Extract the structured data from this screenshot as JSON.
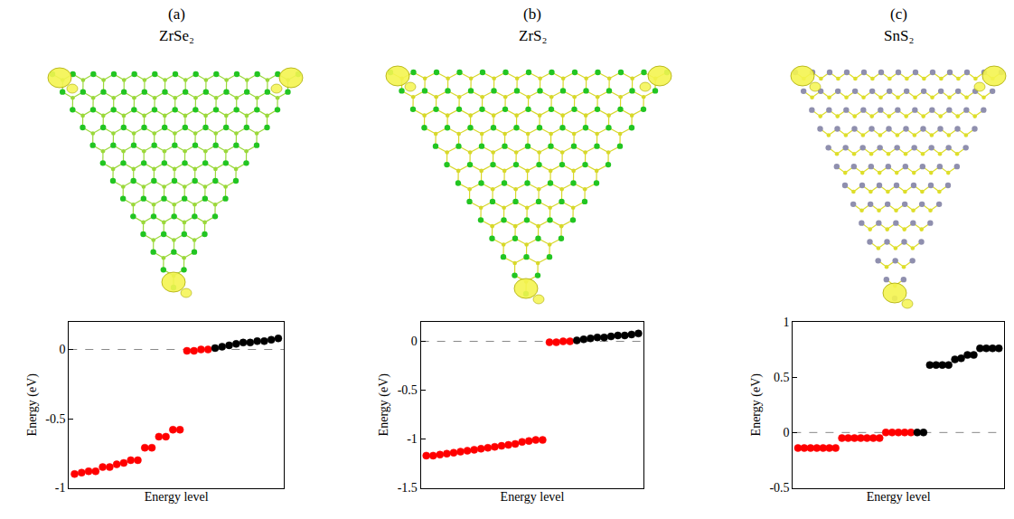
{
  "chart_data": [
    {
      "type": "scatter",
      "title": "(a)",
      "subtitle": "ZrSe₂",
      "x_label": "Energy level",
      "y_label": "Energy (eV)",
      "ylim": [
        -1,
        0.2
      ],
      "yticks": [
        -1,
        -0.5,
        0
      ],
      "tick_labels": "y",
      "marker": "circle",
      "reference_line": 0,
      "series": [
        {
          "color": "#ff0000",
          "values": [
            -0.9,
            -0.89,
            -0.88,
            -0.88,
            -0.85,
            -0.85,
            -0.83,
            -0.82,
            -0.8,
            -0.8,
            -0.71,
            -0.71,
            -0.63,
            -0.63,
            -0.58,
            -0.58,
            -0.01,
            -0.01,
            0,
            0
          ]
        },
        {
          "color": "#000000",
          "values": [
            0.01,
            0.02,
            0.03,
            0.04,
            0.05,
            0.05,
            0.06,
            0.06,
            0.07,
            0.08
          ]
        }
      ]
    },
    {
      "type": "scatter",
      "title": "(b)",
      "subtitle": "ZrS₂",
      "x_label": "Energy level",
      "y_label": "Energy (eV)",
      "ylim": [
        -1.5,
        0.2
      ],
      "yticks": [
        -1.5,
        -1,
        -0.5,
        0
      ],
      "tick_labels": "y",
      "marker": "circle",
      "reference_line": 0,
      "series": [
        {
          "color": "#ff0000",
          "values": [
            -1.17,
            -1.17,
            -1.16,
            -1.15,
            -1.14,
            -1.13,
            -1.12,
            -1.11,
            -1.1,
            -1.09,
            -1.08,
            -1.07,
            -1.06,
            -1.05,
            -1.03,
            -1.02,
            -1.01,
            -1.01,
            -0.01,
            -0.01,
            0,
            0
          ]
        },
        {
          "color": "#000000",
          "values": [
            0.01,
            0.02,
            0.03,
            0.04,
            0.04,
            0.05,
            0.06,
            0.06,
            0.07,
            0.08
          ]
        }
      ]
    },
    {
      "type": "scatter",
      "title": "(c)",
      "subtitle": "SnS₂",
      "x_label": "Energy level",
      "y_label": "Energy (eV)",
      "ylim": [
        -0.5,
        1
      ],
      "yticks": [
        -0.5,
        0,
        0.5,
        1
      ],
      "tick_labels": "y",
      "marker": "circle",
      "reference_line": 0,
      "series": [
        {
          "color": "#ff0000",
          "values": [
            -0.14,
            -0.14,
            -0.14,
            -0.14,
            -0.14,
            -0.14,
            -0.14,
            -0.05,
            -0.05,
            -0.05,
            -0.05,
            -0.05,
            -0.05,
            -0.05,
            0,
            0,
            0,
            0,
            0
          ]
        },
        {
          "color": "#000000",
          "values": [
            0,
            0,
            0.61,
            0.61,
            0.61,
            0.61,
            0.66,
            0.67,
            0.7,
            0.7,
            0.76,
            0.76,
            0.76,
            0.76
          ]
        }
      ]
    }
  ]
}
